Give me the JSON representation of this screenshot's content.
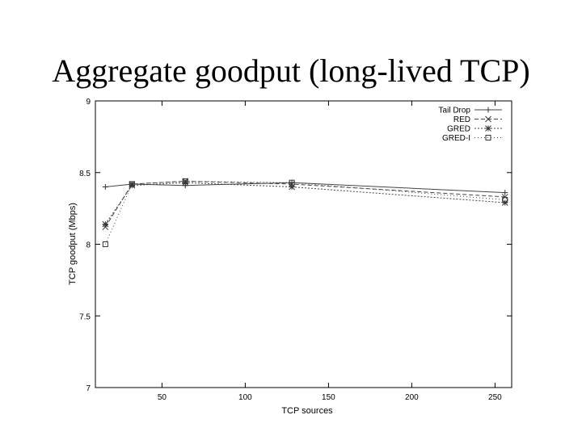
{
  "slide": {
    "title": "Aggregate goodput (long-lived TCP)"
  },
  "chart_data": {
    "type": "line",
    "xlabel": "TCP sources",
    "ylabel": "TCP goodput (Mbps)",
    "xlim": [
      10,
      260
    ],
    "ylim": [
      7,
      9
    ],
    "xticks": [
      50,
      100,
      150,
      200,
      250
    ],
    "yticks": [
      7,
      7.5,
      8,
      8.5,
      9
    ],
    "x": [
      16,
      32,
      64,
      128,
      256
    ],
    "grid": false,
    "legend_position": "top-right",
    "series": [
      {
        "name": "Tail Drop",
        "marker": "+",
        "dash": "none",
        "values": [
          8.4,
          8.42,
          8.41,
          8.43,
          8.36
        ]
      },
      {
        "name": "RED",
        "marker": "x",
        "dash": "5,3",
        "values": [
          8.12,
          8.42,
          8.44,
          8.42,
          8.33
        ]
      },
      {
        "name": "GRED",
        "marker": "*",
        "dash": "2,2",
        "values": [
          8.14,
          8.41,
          8.43,
          8.4,
          8.29
        ]
      },
      {
        "name": "GRED-I",
        "marker": "square",
        "dash": "1,3",
        "values": [
          8.0,
          8.42,
          8.44,
          8.43,
          8.31
        ]
      }
    ]
  }
}
